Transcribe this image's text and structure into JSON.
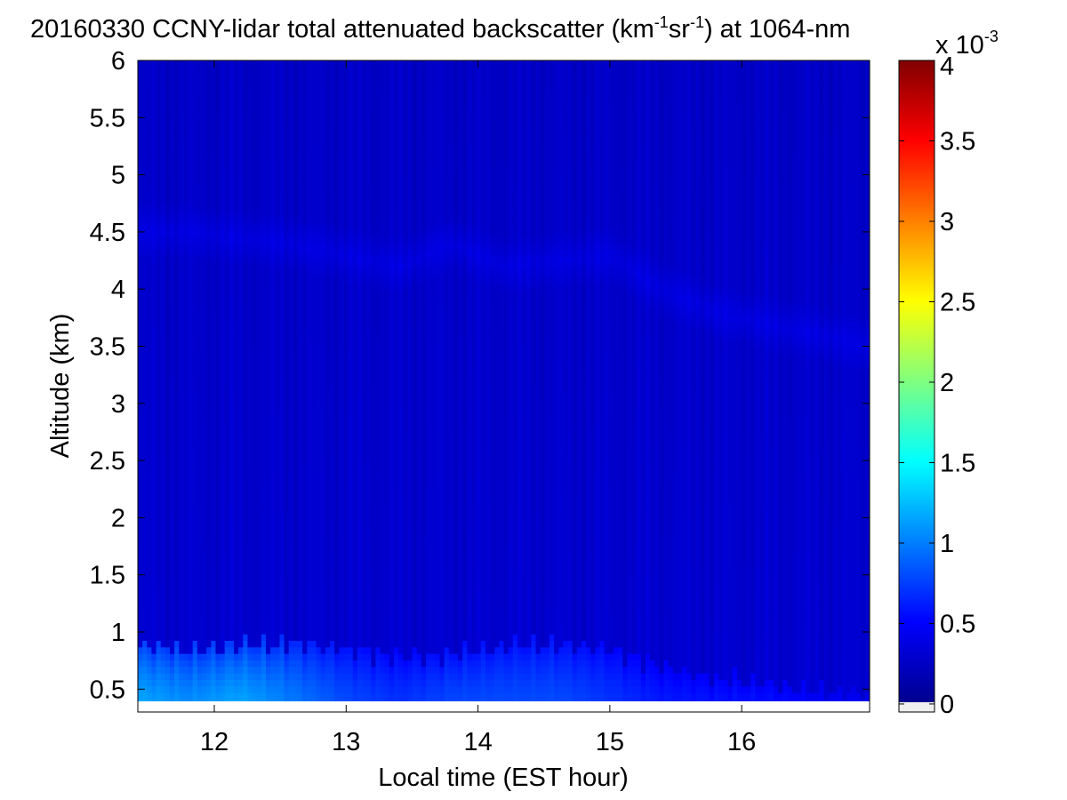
{
  "chart_data": {
    "type": "heatmap",
    "title": {
      "pre": "20160330 CCNY-lidar total attenuated backscatter (km",
      "sup1": "-1",
      "mid": "sr",
      "sup2": "-1",
      "post": ") at 1064-nm"
    },
    "xlabel": "Local time (EST hour)",
    "ylabel": "Altitude (km)",
    "xlim": [
      11.42,
      16.97
    ],
    "ylim": [
      0.3,
      6.0
    ],
    "xticks": [
      12,
      13,
      14,
      15,
      16
    ],
    "xtick_labels": [
      "12",
      "13",
      "14",
      "15",
      "16"
    ],
    "yticks": [
      0.5,
      1,
      1.5,
      2,
      2.5,
      3,
      3.5,
      4,
      4.5,
      5,
      5.5,
      6
    ],
    "ytick_labels": [
      "0.5",
      "1",
      "1.5",
      "2",
      "2.5",
      "3",
      "3.5",
      "4",
      "4.5",
      "5",
      "5.5",
      "6"
    ],
    "colorbar": {
      "colormap": "jet",
      "range": [
        -5e-05,
        0.004
      ],
      "ticks": [
        0,
        0.0005,
        0.001,
        0.0015,
        0.002,
        0.0025,
        0.003,
        0.0035,
        0.004
      ],
      "tick_labels": [
        "0",
        "0.5",
        "1",
        "1.5",
        "2",
        "2.5",
        "3",
        "3.5",
        "4"
      ],
      "multiplier_base": "x 10",
      "multiplier_exp": "-3"
    },
    "field_description": {
      "background_value": 0.00027,
      "aerosol_layer_top_km": [
        0.9,
        0.85,
        0.88,
        0.9,
        0.85,
        0.78,
        0.8,
        0.88,
        0.9,
        0.85,
        0.7,
        0.6,
        0.55,
        0.5,
        0.45
      ],
      "aerosol_layer_top_hours": [
        11.42,
        11.8,
        12.2,
        12.6,
        13.0,
        13.4,
        13.8,
        14.2,
        14.6,
        15.0,
        15.4,
        15.8,
        16.2,
        16.6,
        16.97
      ],
      "aerosol_peak_value": [
        0.0012,
        0.0011,
        0.0012,
        0.001,
        0.0008,
        0.0007,
        0.0008,
        0.0008,
        0.0008,
        0.0007,
        0.0006,
        0.0006,
        0.0006,
        0.0005,
        0.0005
      ],
      "elevated_layer_altitude_km": [
        4.5,
        4.5,
        4.45,
        4.4,
        4.3,
        4.2,
        4.4,
        4.2,
        4.25,
        4.3,
        4.0,
        3.8,
        3.7,
        3.6,
        3.5
      ],
      "elevated_layer_value": 0.00036
    },
    "grid": false,
    "legend": "colorbar-right"
  }
}
